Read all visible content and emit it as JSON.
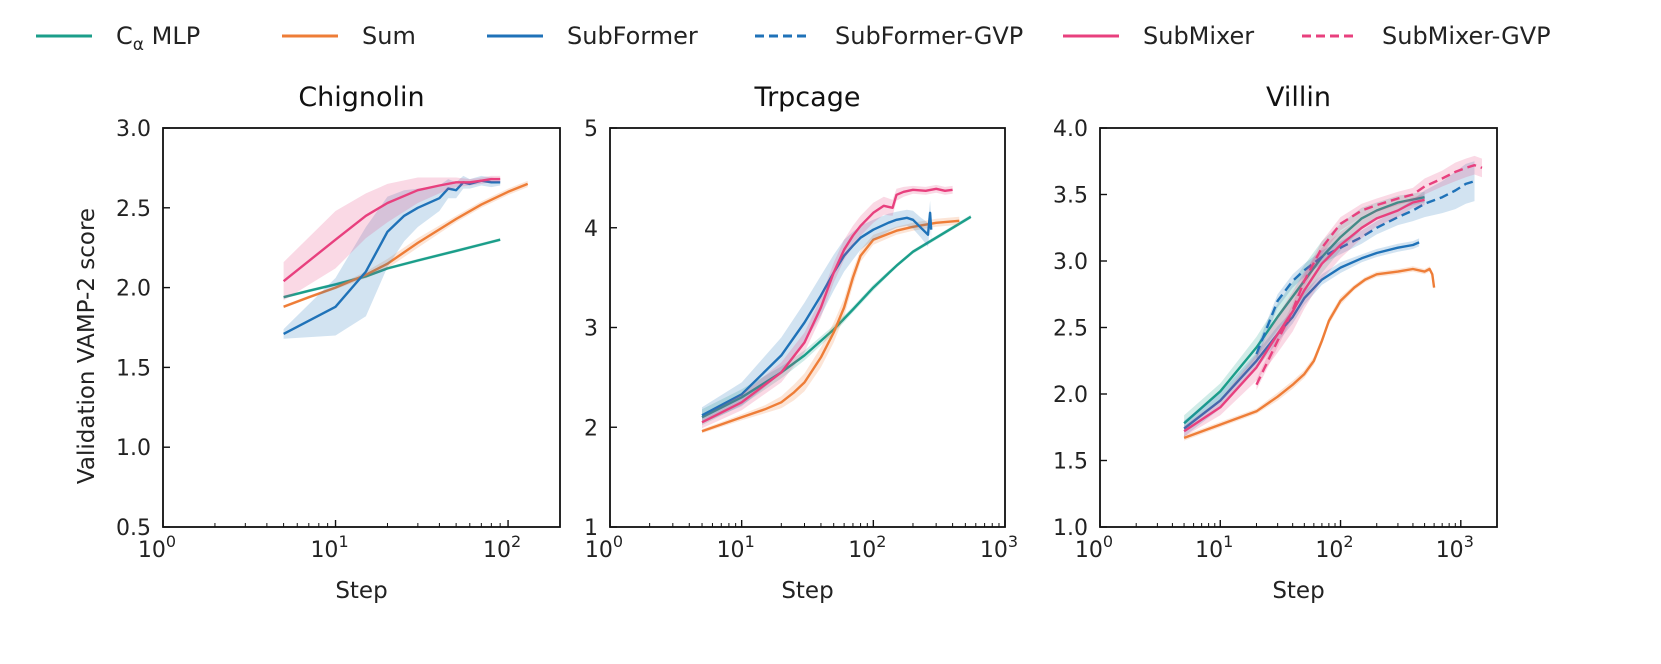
{
  "chart_data": {
    "type": "line",
    "legend_placement": "top",
    "legend": [
      {
        "key": "calpha_mlp",
        "pre": "C",
        "sub": "α",
        "post": " MLP",
        "color": "#1b9e8a",
        "dash": false
      },
      {
        "key": "sum",
        "label": "Sum",
        "color": "#ee7d37",
        "dash": false
      },
      {
        "key": "subformer",
        "label": "SubFormer",
        "color": "#1f72b8",
        "dash": false
      },
      {
        "key": "subformer_gvp",
        "label": "SubFormer-GVP",
        "color": "#1f72b8",
        "dash": true
      },
      {
        "key": "submixer",
        "label": "SubMixer",
        "color": "#e8407e",
        "dash": false
      },
      {
        "key": "submixer_gvp",
        "label": "SubMixer-GVP",
        "color": "#e8407e",
        "dash": true
      }
    ],
    "ylabel": "Validation VAMP-2 score",
    "panels": [
      {
        "title": "Chignolin",
        "xlabel": "Step",
        "xscale": "log",
        "xlim": [
          1,
          200
        ],
        "ylim": [
          0.5,
          3.0
        ],
        "xticks": [
          {
            "v": 1,
            "e": "0"
          },
          {
            "v": 10,
            "e": "1"
          },
          {
            "v": 100,
            "e": "2"
          }
        ],
        "yticks": [
          "0.5",
          "1.0",
          "1.5",
          "2.0",
          "2.5",
          "3.0"
        ],
        "series": [
          {
            "key": "calpha_mlp",
            "x": [
              5,
              7,
              10,
              15,
              20,
              30,
              50,
              70,
              90
            ],
            "y": [
              1.94,
              1.98,
              2.02,
              2.07,
              2.12,
              2.17,
              2.23,
              2.27,
              2.3
            ],
            "band": [
              0.01,
              0.01,
              0.01,
              0.01,
              0.01,
              0.01,
              0.01,
              0.01,
              0.01
            ]
          },
          {
            "key": "sum",
            "x": [
              5,
              7,
              10,
              15,
              20,
              30,
              50,
              70,
              100,
              130
            ],
            "y": [
              1.88,
              1.94,
              2.0,
              2.08,
              2.15,
              2.28,
              2.43,
              2.52,
              2.6,
              2.65
            ],
            "band": [
              0.01,
              0.01,
              0.01,
              0.02,
              0.03,
              0.03,
              0.02,
              0.02,
              0.02,
              0.02
            ]
          },
          {
            "key": "subformer",
            "x": [
              5,
              10,
              15,
              20,
              25,
              30,
              40,
              45,
              50,
              55,
              60,
              70,
              80,
              90
            ],
            "y": [
              1.71,
              1.88,
              2.1,
              2.35,
              2.45,
              2.5,
              2.56,
              2.62,
              2.61,
              2.66,
              2.65,
              2.67,
              2.66,
              2.66
            ],
            "band": [
              0.03,
              0.18,
              0.28,
              0.22,
              0.16,
              0.12,
              0.08,
              0.06,
              0.05,
              0.04,
              0.03,
              0.03,
              0.03,
              0.02
            ]
          },
          {
            "key": "submixer",
            "x": [
              5,
              10,
              15,
              20,
              30,
              40,
              50,
              60,
              70,
              80,
              90
            ],
            "y": [
              2.04,
              2.3,
              2.45,
              2.53,
              2.61,
              2.64,
              2.66,
              2.66,
              2.67,
              2.68,
              2.68
            ],
            "band": [
              0.12,
              0.18,
              0.14,
              0.12,
              0.08,
              0.05,
              0.03,
              0.02,
              0.02,
              0.02,
              0.02
            ]
          }
        ]
      },
      {
        "title": "Trpcage",
        "xlabel": "Step",
        "xscale": "log",
        "xlim": [
          1,
          1000
        ],
        "ylim": [
          1,
          5
        ],
        "xticks": [
          {
            "v": 1,
            "e": "0"
          },
          {
            "v": 10,
            "e": "1"
          },
          {
            "v": 100,
            "e": "2"
          },
          {
            "v": 1000,
            "e": "3"
          }
        ],
        "yticks": [
          "1",
          "2",
          "3",
          "4",
          "5"
        ],
        "series": [
          {
            "key": "calpha_mlp",
            "x": [
              5,
              10,
              20,
              30,
              50,
              70,
              100,
              150,
              200,
              300,
              400,
              550
            ],
            "y": [
              2.1,
              2.3,
              2.55,
              2.72,
              2.98,
              3.18,
              3.4,
              3.62,
              3.76,
              3.9,
              4.0,
              4.11
            ],
            "band": [
              0.08,
              0.08,
              0.06,
              0.05,
              0.04,
              0.03,
              0.03,
              0.02,
              0.02,
              0.02,
              0.02,
              0.02
            ]
          },
          {
            "key": "sum",
            "x": [
              5,
              10,
              15,
              20,
              25,
              30,
              40,
              50,
              60,
              70,
              80,
              100,
              150,
              200,
              300,
              450
            ],
            "y": [
              1.96,
              2.1,
              2.18,
              2.25,
              2.35,
              2.45,
              2.7,
              2.95,
              3.2,
              3.5,
              3.72,
              3.88,
              3.97,
              4.01,
              4.05,
              4.07
            ],
            "band": [
              0.02,
              0.03,
              0.04,
              0.06,
              0.08,
              0.09,
              0.1,
              0.1,
              0.09,
              0.08,
              0.06,
              0.05,
              0.04,
              0.04,
              0.04,
              0.04
            ]
          },
          {
            "key": "subformer",
            "x": [
              5,
              10,
              20,
              30,
              40,
              50,
              60,
              70,
              80,
              100,
              130,
              150,
              180,
              200,
              230,
              260,
              270,
              275
            ],
            "y": [
              2.12,
              2.33,
              2.72,
              3.05,
              3.32,
              3.55,
              3.72,
              3.82,
              3.9,
              3.98,
              4.05,
              4.08,
              4.1,
              4.08,
              4.0,
              3.93,
              4.15,
              3.98
            ],
            "band": [
              0.08,
              0.12,
              0.18,
              0.2,
              0.2,
              0.18,
              0.16,
              0.14,
              0.12,
              0.1,
              0.09,
              0.08,
              0.08,
              0.09,
              0.1,
              0.12,
              0.12,
              0.12
            ]
          },
          {
            "key": "submixer",
            "x": [
              5,
              10,
              20,
              30,
              40,
              50,
              60,
              70,
              80,
              100,
              120,
              140,
              150,
              170,
              200,
              250,
              300,
              350,
              400
            ],
            "y": [
              2.05,
              2.25,
              2.55,
              2.85,
              3.2,
              3.55,
              3.78,
              3.92,
              4.02,
              4.15,
              4.22,
              4.2,
              4.33,
              4.36,
              4.38,
              4.37,
              4.39,
              4.37,
              4.38
            ],
            "band": [
              0.06,
              0.08,
              0.1,
              0.1,
              0.1,
              0.1,
              0.1,
              0.1,
              0.1,
              0.1,
              0.09,
              0.08,
              0.06,
              0.05,
              0.04,
              0.04,
              0.04,
              0.04,
              0.04
            ]
          }
        ]
      },
      {
        "title": "Villin",
        "xlabel": "Step",
        "xscale": "log",
        "xlim": [
          1,
          2000
        ],
        "ylim": [
          1.0,
          4.0
        ],
        "xticks": [
          {
            "v": 1,
            "e": "0"
          },
          {
            "v": 10,
            "e": "1"
          },
          {
            "v": 100,
            "e": "2"
          },
          {
            "v": 1000,
            "e": "3"
          }
        ],
        "yticks": [
          "1.0",
          "1.5",
          "2.0",
          "2.5",
          "3.0",
          "3.5",
          "4.0"
        ],
        "series": [
          {
            "key": "calpha_mlp",
            "x": [
              5,
              10,
              20,
              30,
              50,
              70,
              100,
              150,
              200,
              300,
              500
            ],
            "y": [
              1.78,
              2.02,
              2.35,
              2.58,
              2.85,
              3.03,
              3.18,
              3.32,
              3.38,
              3.44,
              3.48
            ],
            "band": [
              0.06,
              0.06,
              0.08,
              0.1,
              0.12,
              0.12,
              0.1,
              0.08,
              0.06,
              0.05,
              0.04
            ]
          },
          {
            "key": "sum",
            "x": [
              5,
              10,
              20,
              30,
              40,
              50,
              60,
              70,
              80,
              100,
              130,
              160,
              200,
              300,
              400,
              500,
              550,
              580,
              600
            ],
            "y": [
              1.67,
              1.77,
              1.87,
              1.98,
              2.07,
              2.15,
              2.25,
              2.4,
              2.55,
              2.7,
              2.8,
              2.86,
              2.9,
              2.92,
              2.94,
              2.92,
              2.94,
              2.9,
              2.8
            ],
            "band": [
              0.02,
              0.02,
              0.02,
              0.03,
              0.03,
              0.03,
              0.03,
              0.03,
              0.03,
              0.03,
              0.02,
              0.02,
              0.02,
              0.02,
              0.02,
              0.02,
              0.02,
              0.02,
              0.02
            ]
          },
          {
            "key": "subformer",
            "x": [
              5,
              10,
              20,
              30,
              40,
              50,
              70,
              100,
              150,
              200,
              300,
              400,
              450
            ],
            "y": [
              1.74,
              1.95,
              2.25,
              2.45,
              2.58,
              2.72,
              2.86,
              2.95,
              3.02,
              3.06,
              3.1,
              3.12,
              3.14
            ],
            "band": [
              0.06,
              0.06,
              0.06,
              0.06,
              0.05,
              0.05,
              0.04,
              0.04,
              0.03,
              0.03,
              0.03,
              0.03,
              0.03
            ]
          },
          {
            "key": "subformer_gvp",
            "x": [
              20,
              30,
              40,
              50,
              70,
              100,
              150,
              200,
              300,
              400,
              500,
              700,
              900,
              1100,
              1300
            ],
            "y": [
              2.3,
              2.7,
              2.85,
              2.93,
              3.03,
              3.1,
              3.18,
              3.25,
              3.33,
              3.38,
              3.43,
              3.48,
              3.53,
              3.58,
              3.6
            ],
            "band": [
              0.05,
              0.05,
              0.05,
              0.05,
              0.05,
              0.05,
              0.05,
              0.05,
              0.06,
              0.08,
              0.1,
              0.12,
              0.14,
              0.15,
              0.15
            ]
          },
          {
            "key": "submixer",
            "x": [
              5,
              10,
              20,
              30,
              40,
              50,
              70,
              100,
              150,
              200,
              300,
              400,
              500
            ],
            "y": [
              1.72,
              1.9,
              2.2,
              2.45,
              2.62,
              2.78,
              2.98,
              3.12,
              3.25,
              3.32,
              3.38,
              3.44,
              3.46
            ],
            "band": [
              0.04,
              0.06,
              0.1,
              0.14,
              0.15,
              0.14,
              0.12,
              0.1,
              0.08,
              0.06,
              0.05,
              0.04,
              0.04
            ]
          },
          {
            "key": "submixer_gvp",
            "x": [
              20,
              30,
              40,
              50,
              70,
              100,
              150,
              200,
              300,
              400,
              500,
              700,
              900,
              1100,
              1300,
              1500
            ],
            "y": [
              2.07,
              2.4,
              2.63,
              2.85,
              3.1,
              3.28,
              3.38,
              3.42,
              3.47,
              3.5,
              3.56,
              3.62,
              3.67,
              3.7,
              3.72,
              3.7
            ],
            "band": [
              0.04,
              0.05,
              0.05,
              0.05,
              0.05,
              0.05,
              0.05,
              0.05,
              0.05,
              0.05,
              0.06,
              0.06,
              0.07,
              0.07,
              0.07,
              0.07
            ]
          }
        ]
      }
    ]
  }
}
